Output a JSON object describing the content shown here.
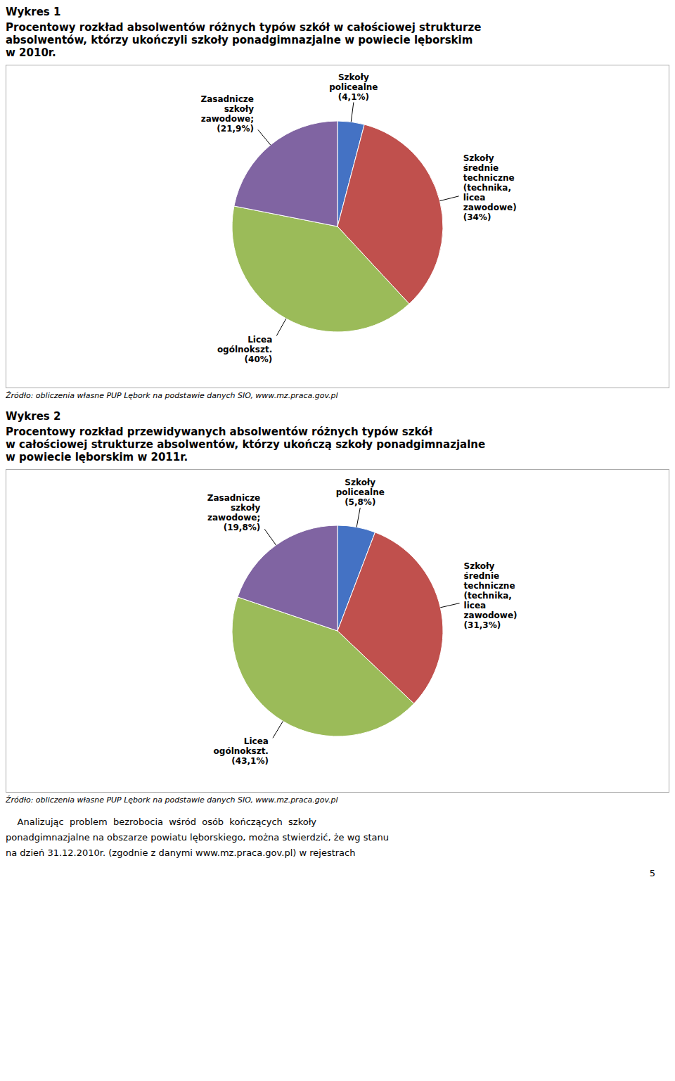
{
  "chart_data": [
    {
      "type": "pie",
      "title": "Wykres 1",
      "subtitle": "Procentowy rozkład absolwentów różnych typów szkół w całościowej strukturze\nabsolwentów, którzy ukończyli szkoły ponadgimnazjalne w powiecie lęborskim\nw 2010r.",
      "values": [
        4.1,
        34.0,
        40.0,
        21.9
      ],
      "value_labels": [
        "Szkoły\npolicealne\n(4,1%)",
        "Szkoły\nśrednie\ntechniczne\n(technika,\nlicea\nzawodowe)\n(34%)",
        "Licea\nogólnokszt.\n(40%)",
        "Zasadnicze\nszkoły\nzawodowe;\n(21,9%)"
      ],
      "colors": [
        "#4472C4",
        "#C0504D",
        "#9BBB59",
        "#8064A2"
      ],
      "source": "Źródło: obliczenia własne PUP Lębork na podstawie danych SIO, www.mz.praca.gov.pl"
    },
    {
      "type": "pie",
      "title": "Wykres 2",
      "subtitle": "Procentowy rozkład przewidywanych absolwentów różnych typów szkół\nw całościowej strukturze absolwentów, którzy ukończą szkoły ponadgimnazjalne\nw powiecie lęborskim w 2011r.",
      "values": [
        5.8,
        31.3,
        43.1,
        19.8
      ],
      "value_labels": [
        "Szkoły\npolicealne\n(5,8%)",
        "Szkoły\nśrednie\ntechniczne\n(technika,\nlicea\nzawodowe)\n(31,3%)",
        "Licea\nogólnokszt.\n(43,1%)",
        "Zasadnicze\nszkoły\nzawodowe;\n(19,8%)"
      ],
      "colors": [
        "#4472C4",
        "#C0504D",
        "#9BBB59",
        "#8064A2"
      ],
      "source": "Źródło: obliczenia własne PUP Lębork na podstawie danych SIO, www.mz.praca.gov.pl"
    }
  ],
  "footer": [
    "    Analizując  problem  bezrobocia  wśród  osób  kończących  szkoły",
    "ponadgimnazjalne na obszarze powiatu lęborskiego, można stwierdzić, że wg stanu",
    "na dzień 31.12.2010r. (zgodnie z danymi www.mz.praca.gov.pl) w rejestrach"
  ],
  "page_number": "5"
}
